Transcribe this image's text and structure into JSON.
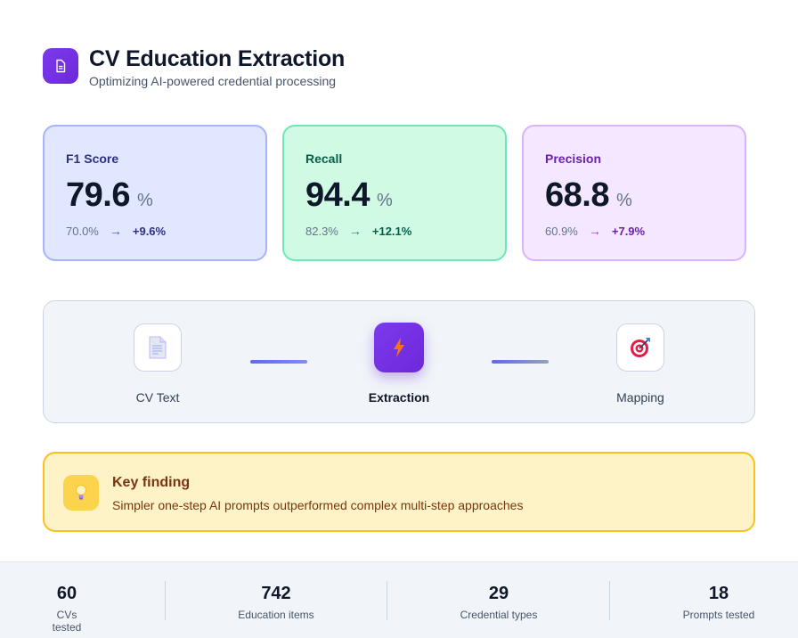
{
  "header": {
    "title": "CV Education Extraction",
    "subtitle": "Optimizing AI-powered credential processing",
    "icon": "document-icon"
  },
  "metrics": [
    {
      "label": "F1 Score",
      "value": "79.6",
      "unit": "%",
      "baseline": "70.0%",
      "delta": "+9.6%",
      "color": "#4f46e5"
    },
    {
      "label": "Recall",
      "value": "94.4",
      "unit": "%",
      "baseline": "82.3%",
      "delta": "+12.1%",
      "color": "#059669"
    },
    {
      "label": "Precision",
      "value": "68.8",
      "unit": "%",
      "baseline": "60.9%",
      "delta": "+7.9%",
      "color": "#9333ea"
    }
  ],
  "pipeline": {
    "steps": [
      {
        "label": "CV Text",
        "icon": "page-icon"
      },
      {
        "label": "Extraction",
        "icon": "lightning-icon",
        "active": true
      },
      {
        "label": "Mapping",
        "icon": "target-icon"
      }
    ]
  },
  "finding": {
    "title": "Key finding",
    "text": "Simpler one-step AI prompts outperformed complex multi-step approaches",
    "icon": "lightbulb-icon"
  },
  "stats": [
    {
      "value": "60",
      "label": "CVs tested"
    },
    {
      "value": "742",
      "label": "Education items"
    },
    {
      "value": "29",
      "label": "Credential types"
    },
    {
      "value": "18",
      "label": "Prompts tested"
    }
  ],
  "arrow_glyph": "→"
}
